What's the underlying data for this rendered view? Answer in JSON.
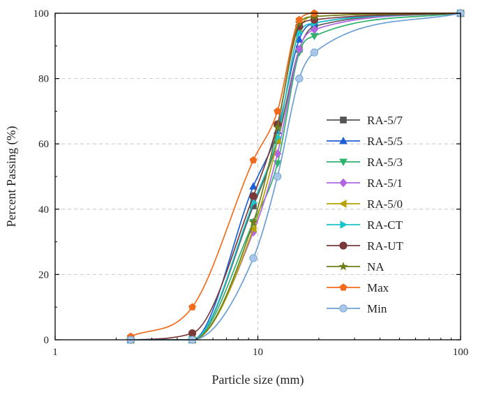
{
  "chart_data": {
    "type": "line",
    "title": "",
    "xlabel": "Particle size (mm)",
    "ylabel": "Percent Passing (%)",
    "xscale": "log",
    "xlim": [
      1,
      100
    ],
    "ylim": [
      0,
      100
    ],
    "xticks": [
      1,
      10,
      100
    ],
    "xtick_labels": [
      "1",
      "10",
      "100"
    ],
    "yticks": [
      0,
      20,
      40,
      60,
      80,
      100
    ],
    "ytick_labels": [
      "0",
      "20",
      "40",
      "60",
      "80",
      "100"
    ],
    "grid": "dashed",
    "legend_position": "right",
    "series": [
      {
        "name": "RA-5/7",
        "color": "#555555",
        "marker": "square",
        "x": [
          2.36,
          4.75,
          9.5,
          12.5,
          16,
          19,
          100
        ],
        "y": [
          0,
          0,
          41,
          61,
          89,
          96,
          100
        ]
      },
      {
        "name": "RA-5/5",
        "color": "#1f5fd8",
        "marker": "triangle-up",
        "x": [
          2.36,
          4.75,
          9.5,
          12.5,
          16,
          19,
          100
        ],
        "y": [
          0,
          0,
          47,
          64,
          92,
          97,
          100
        ]
      },
      {
        "name": "RA-5/3",
        "color": "#2db36b",
        "marker": "triangle-down",
        "x": [
          2.36,
          4.75,
          9.5,
          12.5,
          16,
          19,
          100
        ],
        "y": [
          0,
          0,
          36,
          54,
          88,
          93,
          100
        ]
      },
      {
        "name": "RA-5/1",
        "color": "#b066e0",
        "marker": "diamond",
        "x": [
          2.36,
          4.75,
          9.5,
          12.5,
          16,
          19,
          100
        ],
        "y": [
          0,
          0,
          33,
          57,
          89,
          95,
          100
        ]
      },
      {
        "name": "RA-5/0",
        "color": "#b8a200",
        "marker": "triangle-left",
        "x": [
          2.36,
          4.75,
          9.5,
          12.5,
          16,
          19,
          100
        ],
        "y": [
          0,
          0,
          34,
          61,
          95,
          99,
          100
        ]
      },
      {
        "name": "RA-CT",
        "color": "#1cc4cc",
        "marker": "triangle-right",
        "x": [
          2.36,
          4.75,
          9.5,
          12.5,
          16,
          19,
          100
        ],
        "y": [
          0,
          0,
          42,
          62,
          94,
          97,
          100
        ]
      },
      {
        "name": "RA-UT",
        "color": "#7a3a3a",
        "marker": "circle",
        "x": [
          2.36,
          4.75,
          9.5,
          12.5,
          16,
          19,
          100
        ],
        "y": [
          0,
          2,
          44,
          66,
          96,
          98,
          100
        ]
      },
      {
        "name": "NA",
        "color": "#6f7c1c",
        "marker": "star",
        "x": [
          2.36,
          4.75,
          9.5,
          12.5,
          16,
          19,
          100
        ],
        "y": [
          0,
          0,
          36,
          65,
          97,
          99,
          100
        ]
      },
      {
        "name": "Max",
        "color": "#f26b1d",
        "marker": "pentagon",
        "x": [
          2.36,
          4.75,
          9.5,
          12.5,
          16,
          19,
          100
        ],
        "y": [
          1,
          10,
          55,
          70,
          98,
          100,
          100
        ]
      },
      {
        "name": "Min",
        "color": "#6a9fd3",
        "marker": "circle-light",
        "x": [
          2.36,
          4.75,
          9.5,
          12.5,
          16,
          19,
          100
        ],
        "y": [
          0,
          0,
          25,
          50,
          80,
          88,
          100
        ]
      }
    ]
  }
}
